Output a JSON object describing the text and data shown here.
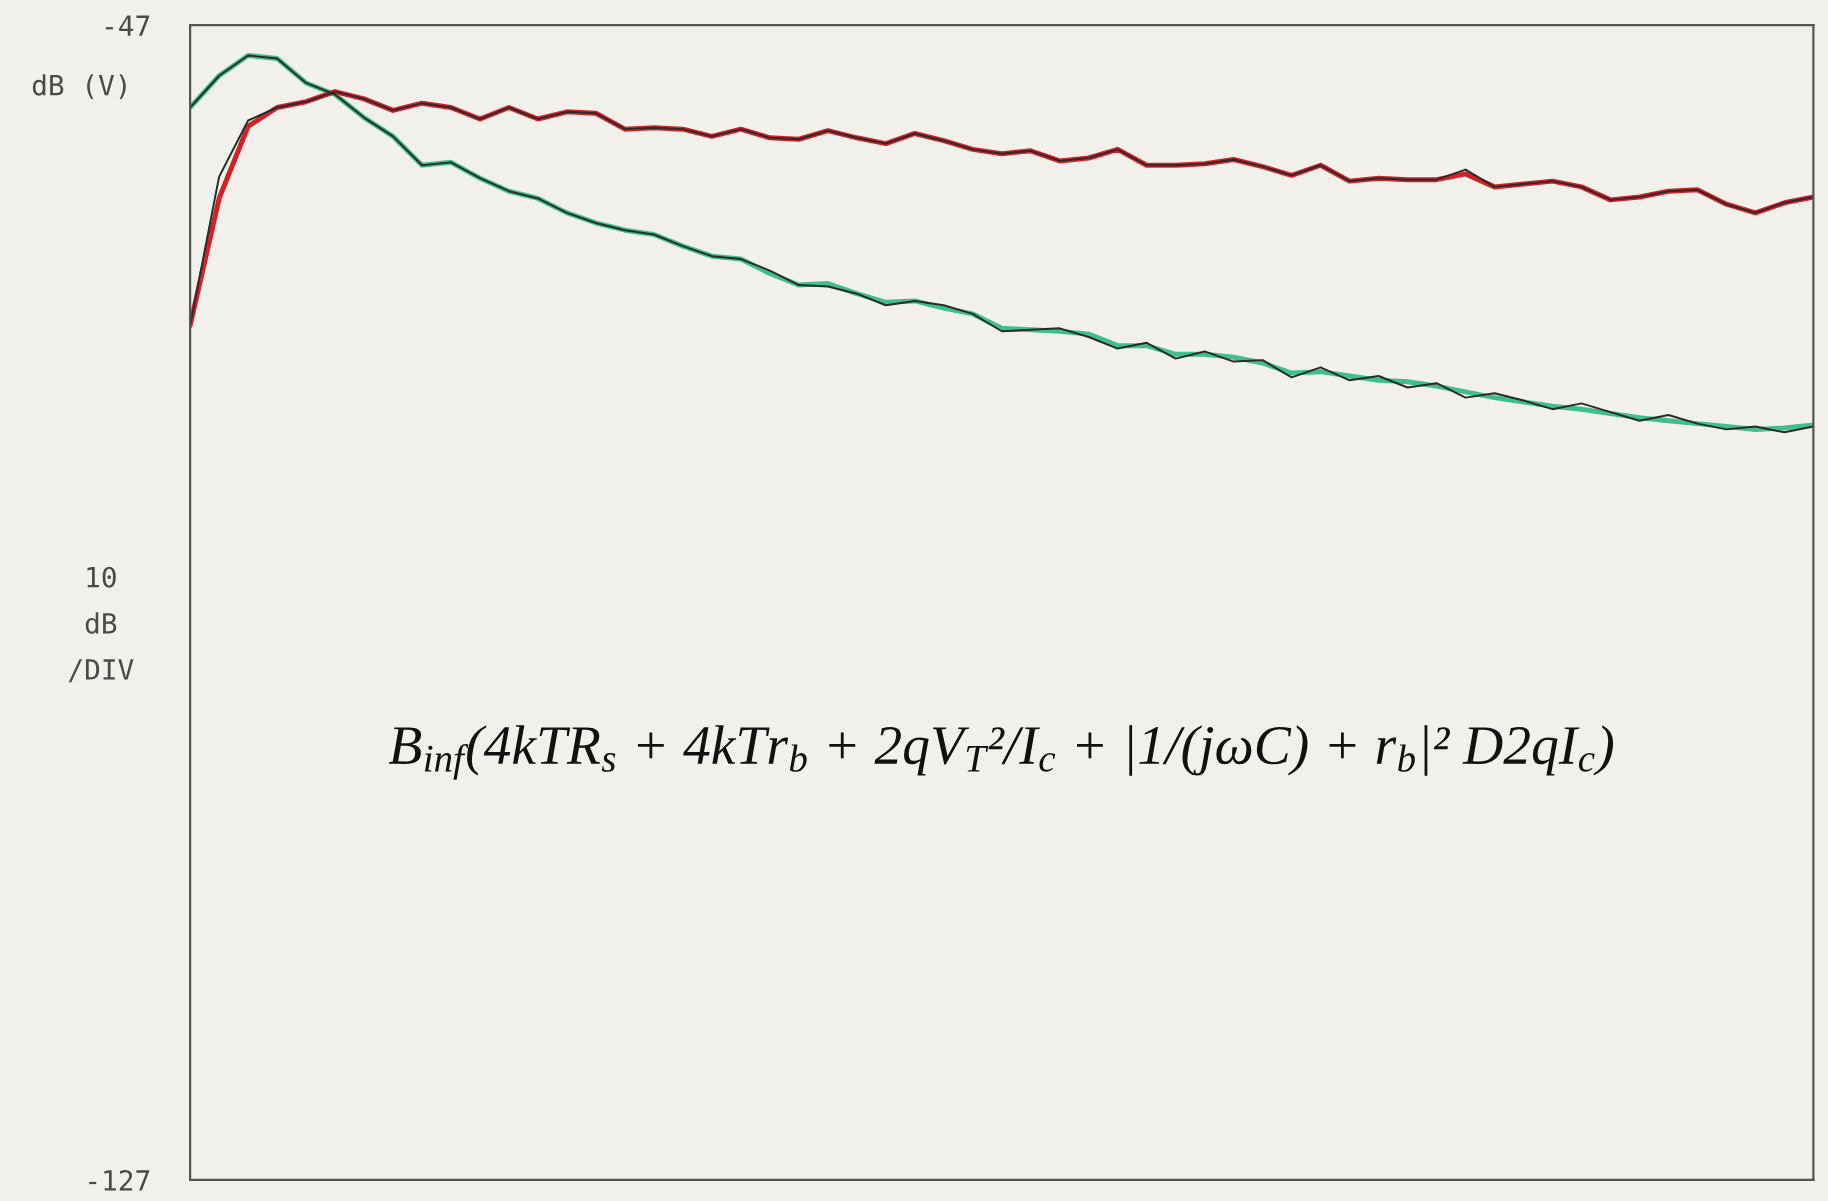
{
  "chart_data": {
    "type": "line",
    "ylabel": "10\ndB\n/DIV",
    "ylim": [
      -127,
      -47
    ],
    "yticks": [
      -127,
      -47
    ],
    "tick_labels": "y",
    "line_style": "solid",
    "categories": [
      null,
      null,
      null,
      null,
      null,
      null,
      null,
      null,
      null,
      null,
      null,
      null,
      null,
      null,
      null,
      null,
      null,
      null,
      null,
      null,
      null,
      null,
      null,
      null,
      null,
      null,
      null,
      null,
      null,
      null,
      null,
      null,
      null,
      null,
      null,
      null,
      null,
      null,
      null,
      null,
      null,
      null,
      null,
      null,
      null,
      null,
      null,
      null,
      null,
      null,
      null,
      null,
      null,
      null,
      null,
      null,
      null
    ],
    "series": [
      {
        "color": "#3fbf8c",
        "values": [
          -52.7,
          -50.5,
          -49.1,
          -49.3,
          -51.0,
          -51.8,
          -53.4,
          -54.7,
          -56.7,
          -56.5,
          -57.6,
          -58.5,
          -59.0,
          -60.0,
          -60.7,
          -61.2,
          -61.5,
          -62.3,
          -63.0,
          -63.2,
          -64.2,
          -65.0,
          -64.9,
          -65.6,
          -66.2,
          -66.1,
          -66.6,
          -67.0,
          -68.0,
          -68.1,
          -68.2,
          -68.4,
          -69.2,
          -69.2,
          -69.8,
          -69.8,
          -70.0,
          -70.4,
          -71.1,
          -71.0,
          -71.3,
          -71.6,
          -71.7,
          -72.0,
          -72.4,
          -72.8,
          -73.1,
          -73.4,
          -73.6,
          -73.9,
          -74.2,
          -74.4,
          -74.6,
          -74.8,
          -75.0,
          -74.9,
          -74.7
        ]
      },
      {
        "color": "#d42027",
        "values": [
          -67.8,
          -59.0,
          -54.0,
          -52.7,
          -52.3,
          -51.6,
          -52.1,
          -52.9,
          -52.4,
          -52.7,
          -53.5,
          -52.7,
          -53.5,
          -53.0,
          -53.1,
          -54.2,
          -54.1,
          -54.2,
          -54.7,
          -54.2,
          -54.8,
          -54.9,
          -54.3,
          -54.8,
          -55.2,
          -54.5,
          -55.0,
          -55.6,
          -55.9,
          -55.7,
          -56.4,
          -56.2,
          -55.6,
          -56.7,
          -56.7,
          -56.6,
          -56.3,
          -56.8,
          -57.4,
          -56.7,
          -57.8,
          -57.6,
          -57.7,
          -57.7,
          -57.3,
          -58.2,
          -58.0,
          -57.8,
          -58.2,
          -59.1,
          -58.9,
          -58.5,
          -58.4,
          -59.4,
          -60.0,
          -59.3,
          -58.9
        ]
      },
      {
        "color": "#2a2a2a",
        "values": [
          -52.7,
          -50.5,
          -49.1,
          -49.3,
          -51.0,
          -51.8,
          -53.4,
          -54.7,
          -56.7,
          -56.5,
          -57.6,
          -58.5,
          -59.0,
          -60.0,
          -60.7,
          -61.2,
          -61.5,
          -62.3,
          -63.0,
          -63.2,
          -64.0,
          -65.0,
          -65.1,
          -65.6,
          -66.4,
          -66.1,
          -66.4,
          -67.0,
          -68.2,
          -68.1,
          -68.0,
          -68.6,
          -69.4,
          -69.0,
          -70.1,
          -69.6,
          -70.3,
          -70.2,
          -71.4,
          -70.7,
          -71.6,
          -71.3,
          -72.1,
          -71.8,
          -72.8,
          -72.5,
          -73.0,
          -73.6,
          -73.2,
          -73.8,
          -74.4,
          -74.0,
          -74.6,
          -75.0,
          -74.8,
          -75.2,
          -74.8
        ]
      },
      {
        "color": "#2a2a2a",
        "values": [
          -67.8,
          -57.5,
          -53.6,
          -52.7,
          -52.3,
          -51.6,
          -52.1,
          -52.9,
          -52.4,
          -52.7,
          -53.5,
          -52.7,
          -53.5,
          -53.0,
          -53.1,
          -54.2,
          -54.1,
          -54.2,
          -54.7,
          -54.2,
          -54.8,
          -54.9,
          -54.3,
          -54.8,
          -55.2,
          -54.5,
          -55.0,
          -55.6,
          -55.9,
          -55.7,
          -56.4,
          -56.2,
          -55.6,
          -56.7,
          -56.7,
          -56.6,
          -56.3,
          -56.8,
          -57.4,
          -56.7,
          -57.8,
          -57.6,
          -57.7,
          -57.7,
          -57.0,
          -58.2,
          -58.0,
          -57.8,
          -58.2,
          -59.1,
          -58.9,
          -58.5,
          -58.4,
          -59.4,
          -60.0,
          -59.3,
          -58.9
        ]
      }
    ],
    "annotations": [
      "dB (V)",
      "B$_{inf}$(4kTR$_{s}$ + 4kTr$_{b}$ + 2qV$_{T}$²/I$_{c}$ + |1/(jωC) + r$_{b}$|² D2qI$_{c}$)"
    ]
  }
}
